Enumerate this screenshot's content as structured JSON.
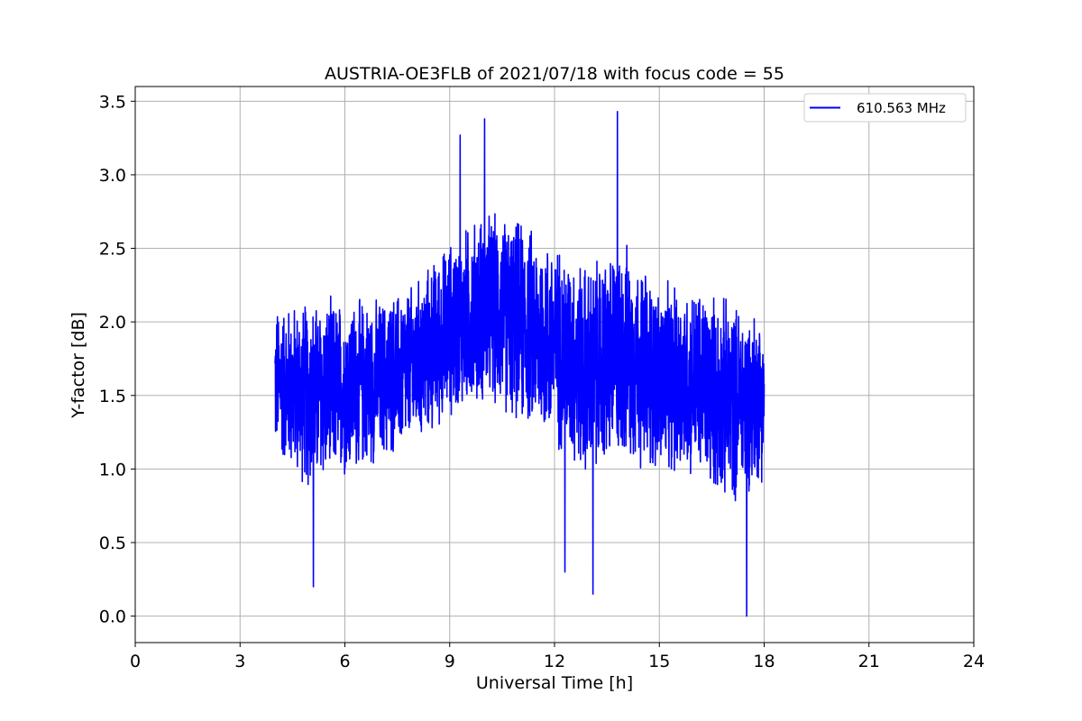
{
  "chart_data": {
    "type": "line",
    "title": "AUSTRIA-OE3FLB of 2021/07/18 with focus code = 55",
    "xlabel": "Universal Time [h]",
    "ylabel": "Y-factor [dB]",
    "xlim": [
      0,
      24
    ],
    "ylim": [
      -0.18,
      3.6
    ],
    "xticks": [
      0,
      3,
      6,
      9,
      12,
      15,
      18,
      21,
      24
    ],
    "xtick_labels": [
      "0",
      "3",
      "6",
      "9",
      "12",
      "15",
      "18",
      "21",
      "24"
    ],
    "yticks": [
      0.0,
      0.5,
      1.0,
      1.5,
      2.0,
      2.5,
      3.0,
      3.5
    ],
    "ytick_labels": [
      "0.0",
      "0.5",
      "1.0",
      "1.5",
      "2.0",
      "2.5",
      "3.0",
      "3.5"
    ],
    "grid": true,
    "legend_position": "top-right",
    "colors": {
      "series": "#0000ff",
      "grid": "#b0b0b0",
      "axes": "#000000"
    },
    "series": [
      {
        "name": "610.563 MHz",
        "x_start": 4.0,
        "x_end": 18.0,
        "envelope_note": "dense noisy signal",
        "envelope": {
          "x": [
            4.0,
            5.0,
            6.0,
            7.0,
            8.0,
            9.0,
            10.0,
            11.0,
            12.0,
            13.0,
            14.0,
            15.0,
            16.0,
            17.0,
            18.0
          ],
          "mean": [
            1.6,
            1.5,
            1.55,
            1.6,
            1.7,
            1.95,
            2.1,
            2.0,
            1.85,
            1.65,
            1.8,
            1.6,
            1.6,
            1.45,
            1.5
          ],
          "amp": [
            0.55,
            0.7,
            0.65,
            0.6,
            0.6,
            0.65,
            0.7,
            0.75,
            0.75,
            0.8,
            0.8,
            0.7,
            0.7,
            0.75,
            0.6
          ]
        },
        "peaks": [
          {
            "x": 5.1,
            "y": 0.2
          },
          {
            "x": 9.3,
            "y": 3.27
          },
          {
            "x": 10.0,
            "y": 3.38
          },
          {
            "x": 12.3,
            "y": 0.3
          },
          {
            "x": 13.1,
            "y": 0.15
          },
          {
            "x": 13.8,
            "y": 3.43
          },
          {
            "x": 17.5,
            "y": 0.0
          }
        ]
      }
    ]
  }
}
